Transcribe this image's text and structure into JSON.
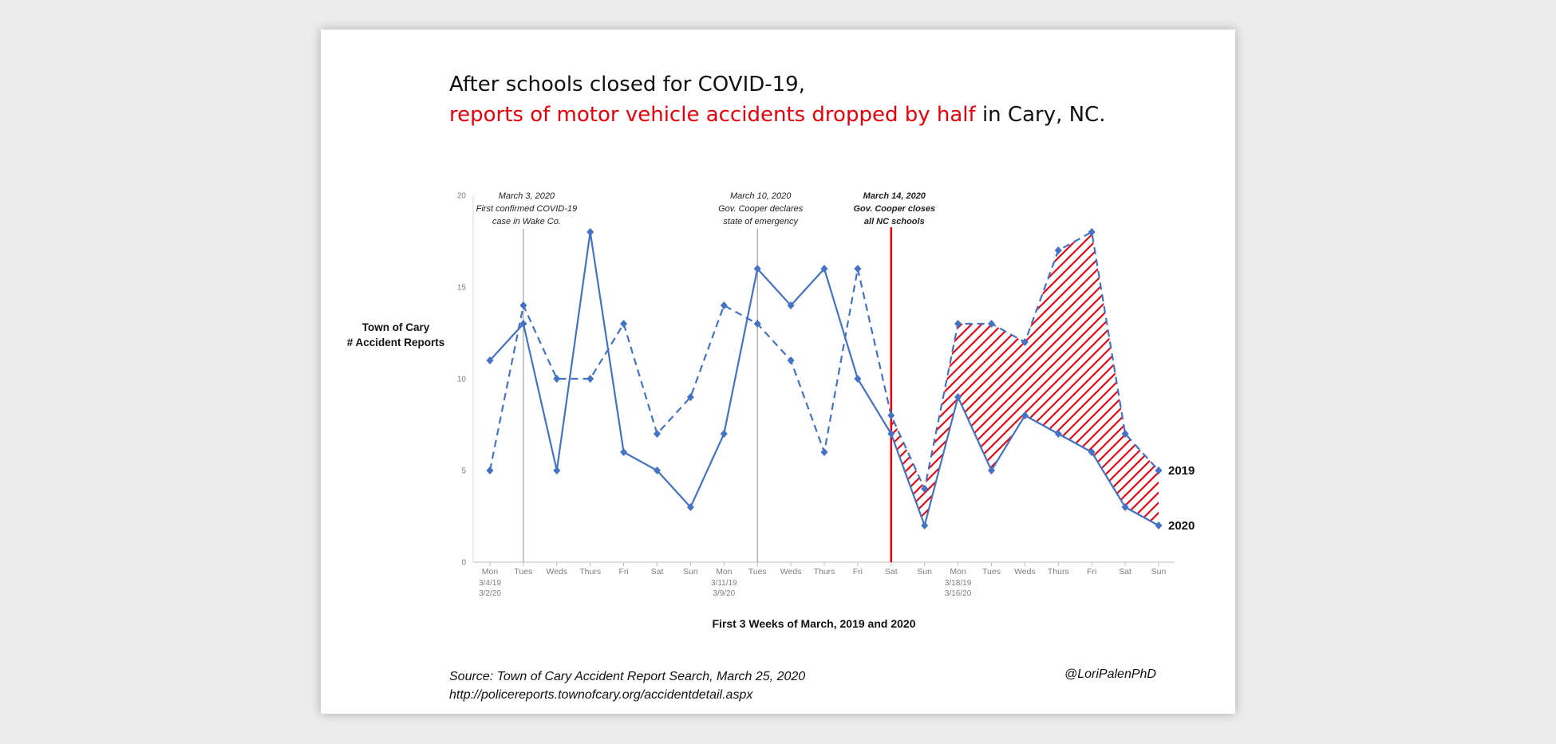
{
  "title": {
    "line1": "After schools closed for COVID-19,",
    "line2_red": "reports of motor vehicle accidents dropped by half",
    "line2_rest": " in Cary, NC."
  },
  "source": {
    "line1": "Source: Town of Cary Accident Report Search, March 25, 2020",
    "line2": "http://policereports.townofcary.org/accidentdetail.aspx"
  },
  "handle": "@LoriPalenPhD",
  "colors": {
    "series": "#4472c4",
    "highlight": "#e8000b",
    "event_line": "#a0a0a0"
  },
  "chart_data": {
    "type": "line",
    "ylabel": [
      "Town of Cary",
      "# Accident Reports"
    ],
    "xlabel": "First 3 Weeks of March, 2019 and 2020",
    "ylim": [
      0,
      20
    ],
    "yticks": [
      0,
      5,
      10,
      15,
      20
    ],
    "grid": false,
    "categories": [
      "Mon",
      "Tues",
      "Weds",
      "Thurs",
      "Fri",
      "Sat",
      "Sun",
      "Mon",
      "Tues",
      "Weds",
      "Thurs",
      "Fri",
      "Sat",
      "Sun",
      "Mon",
      "Tues",
      "Weds",
      "Thurs",
      "Fri",
      "Sat",
      "Sun"
    ],
    "category_sublabels": [
      {
        "index": 0,
        "lines": [
          "3/4/19",
          "3/2/20"
        ]
      },
      {
        "index": 7,
        "lines": [
          "3/11/19",
          "3/9/20"
        ]
      },
      {
        "index": 14,
        "lines": [
          "3/18/19",
          "3/16/20"
        ]
      }
    ],
    "series": [
      {
        "name": "2019",
        "style": "dashed",
        "values": [
          5,
          14,
          10,
          10,
          13,
          7,
          9,
          14,
          13,
          11,
          6,
          16,
          8,
          4,
          13,
          13,
          12,
          17,
          18,
          7,
          5
        ]
      },
      {
        "name": "2020",
        "style": "solid",
        "values": [
          11,
          13,
          5,
          18,
          6,
          5,
          3,
          7,
          16,
          14,
          16,
          10,
          7,
          2,
          9,
          5,
          8,
          7,
          6,
          3,
          2
        ]
      }
    ],
    "shaded_region": {
      "from_index": 12,
      "to_index": 20,
      "between": [
        "2019",
        "2020"
      ],
      "pattern": "red diagonal hatch"
    },
    "annotations": [
      {
        "at_index": 1,
        "lines": [
          "March 3, 2020",
          "First confirmed COVID-19",
          "case in Wake Co."
        ],
        "bold": false,
        "line_color": "gray"
      },
      {
        "at_index": 8,
        "lines": [
          "March 10, 2020",
          "Gov. Cooper declares",
          "state of emergency"
        ],
        "bold": false,
        "line_color": "gray"
      },
      {
        "at_index": 12,
        "lines": [
          "March 14, 2020",
          "Gov. Cooper closes",
          "all NC schools"
        ],
        "bold": true,
        "line_color": "red"
      }
    ]
  }
}
